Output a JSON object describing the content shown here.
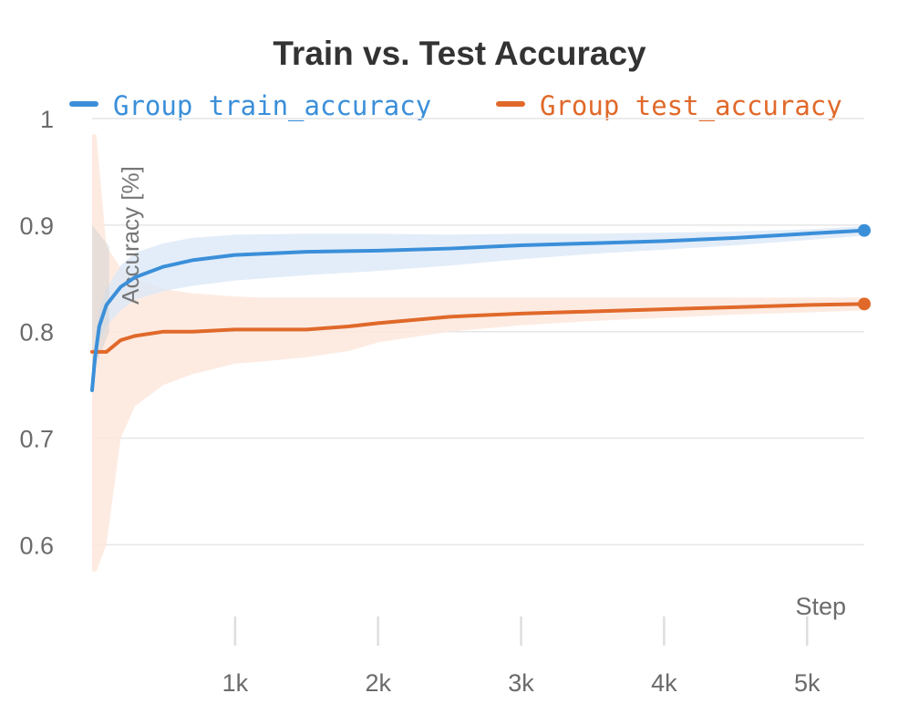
{
  "chart_data": {
    "type": "line",
    "title": "Train vs. Test Accuracy",
    "xlabel": "Step",
    "ylabel": "Accuracy [%]",
    "xlim": [
      0,
      5400
    ],
    "ylim": [
      0.555,
      1.0
    ],
    "x_ticks": [
      1000,
      2000,
      3000,
      4000,
      5000
    ],
    "x_tick_labels": [
      "1k",
      "2k",
      "3k",
      "4k",
      "5k"
    ],
    "y_ticks": [
      0.6,
      0.7,
      0.8,
      0.9,
      1.0
    ],
    "y_tick_labels": [
      "0.6",
      "0.7",
      "0.8",
      "0.9",
      "1"
    ],
    "grid": "horizontal",
    "legend_position": "top",
    "series": [
      {
        "name": "Group train_accuracy",
        "color": "#3b8fd9",
        "band_color": "#dce9f8",
        "x": [
          0,
          20,
          50,
          100,
          200,
          300,
          500,
          700,
          1000,
          1500,
          2000,
          2500,
          3000,
          3500,
          4000,
          4500,
          5000,
          5400
        ],
        "y": [
          0.745,
          0.775,
          0.805,
          0.825,
          0.842,
          0.851,
          0.861,
          0.867,
          0.872,
          0.875,
          0.876,
          0.878,
          0.881,
          0.883,
          0.885,
          0.888,
          0.892,
          0.895
        ],
        "lower": [
          0.745,
          0.76,
          0.79,
          0.805,
          0.82,
          0.83,
          0.838,
          0.843,
          0.848,
          0.853,
          0.857,
          0.862,
          0.868,
          0.873,
          0.877,
          0.881,
          0.886,
          0.89
        ],
        "upper": [
          0.745,
          0.79,
          0.82,
          0.84,
          0.862,
          0.874,
          0.883,
          0.888,
          0.891,
          0.892,
          0.892,
          0.891,
          0.892,
          0.892,
          0.893,
          0.894,
          0.896,
          0.899
        ]
      },
      {
        "name": "Group test_accuracy",
        "color": "#e0692a",
        "band_color": "#fde8dd",
        "x": [
          0,
          30,
          100,
          200,
          300,
          500,
          700,
          1000,
          1200,
          1500,
          1800,
          2000,
          2500,
          3000,
          3500,
          4000,
          4500,
          5000,
          5400
        ],
        "y": [
          0.781,
          0.781,
          0.781,
          0.792,
          0.796,
          0.8,
          0.8,
          0.802,
          0.802,
          0.802,
          0.805,
          0.808,
          0.814,
          0.817,
          0.819,
          0.821,
          0.823,
          0.825,
          0.826
        ],
        "lower": [
          0.575,
          0.575,
          0.6,
          0.7,
          0.73,
          0.75,
          0.76,
          0.77,
          0.772,
          0.776,
          0.782,
          0.79,
          0.8,
          0.806,
          0.81,
          0.813,
          0.816,
          0.818,
          0.82
        ],
        "upper": [
          0.985,
          0.985,
          0.88,
          0.86,
          0.85,
          0.84,
          0.836,
          0.833,
          0.832,
          0.832,
          0.832,
          0.832,
          0.832,
          0.832,
          0.832,
          0.832,
          0.832,
          0.832,
          0.832
        ]
      }
    ]
  }
}
